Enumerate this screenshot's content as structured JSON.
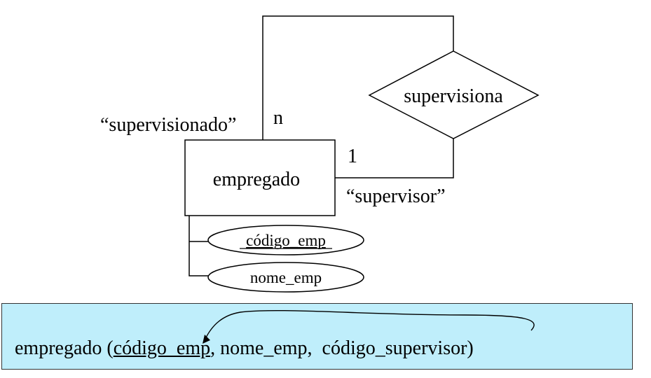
{
  "er": {
    "entity": "empregado",
    "relationship": "supervisiona",
    "role_supervised": "“supervisionado”",
    "role_supervisor": "“supervisor”",
    "cardinality_many": "n",
    "cardinality_one": "1",
    "attributes": [
      {
        "name": "código_emp",
        "key": true
      },
      {
        "name": "nome_emp",
        "key": false
      }
    ]
  },
  "schema": {
    "table_open": "empregado (",
    "pk": "código_emp",
    "rest": ", nome_emp,  código_supervisor)"
  }
}
